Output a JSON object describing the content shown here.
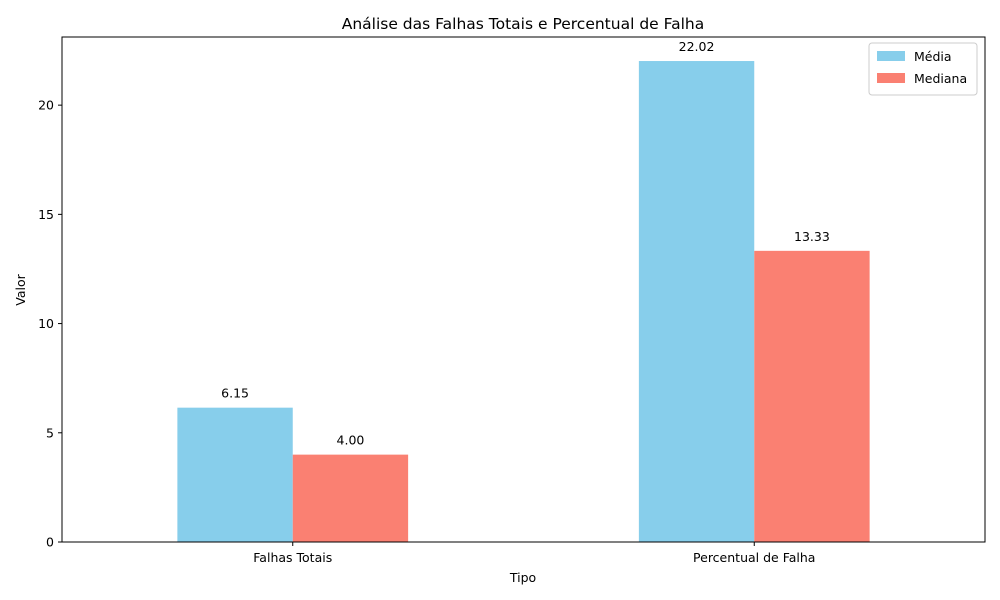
{
  "chart_data": {
    "type": "bar",
    "title": "Análise das Falhas Totais e Percentual de Falha",
    "xlabel": "Tipo",
    "ylabel": "Valor",
    "categories": [
      "Falhas Totais",
      "Percentual de Falha"
    ],
    "series": [
      {
        "name": "Média",
        "values": [
          6.15,
          22.02
        ],
        "labels": [
          "6.15",
          "22.02"
        ],
        "color": "#87ceeb"
      },
      {
        "name": "Mediana",
        "values": [
          4.0,
          13.33
        ],
        "labels": [
          "4.00",
          "13.33"
        ],
        "color": "#fa8072"
      }
    ],
    "ylim": [
      0,
      23.12
    ],
    "yticks": [
      0,
      5,
      10,
      15,
      20
    ],
    "grid": false,
    "legend_position": "top-right"
  }
}
